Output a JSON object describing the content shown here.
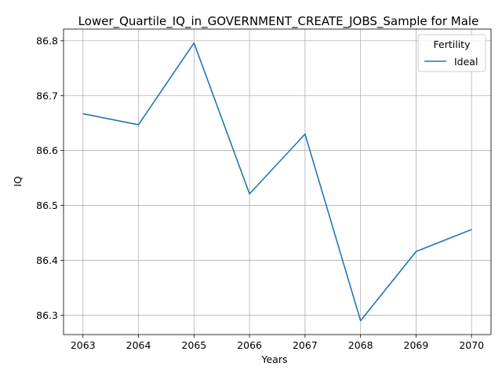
{
  "chart_data": {
    "type": "line",
    "title": "Lower_Quartile_IQ_in_GOVERNMENT_CREATE_JOBS_Sample for Male",
    "xlabel": "Years",
    "ylabel": "IQ",
    "x": [
      2063,
      2064,
      2065,
      2066,
      2067,
      2068,
      2069,
      2070
    ],
    "series": [
      {
        "name": "Ideal",
        "color": "#1f77b4",
        "values": [
          86.667,
          86.647,
          86.796,
          86.521,
          86.63,
          86.29,
          86.416,
          86.456
        ]
      }
    ],
    "xlim": [
      2062.65,
      2070.35
    ],
    "ylim": [
      86.2647,
      86.8213
    ],
    "x_ticks": [
      "2063",
      "2064",
      "2065",
      "2066",
      "2067",
      "2068",
      "2069",
      "2070"
    ],
    "y_ticks": [
      86.3,
      86.4,
      86.5,
      86.6,
      86.7,
      86.8
    ],
    "y_tick_labels": [
      "86.3",
      "86.4",
      "86.5",
      "86.6",
      "86.7",
      "86.8"
    ],
    "grid": true,
    "legend": {
      "title": "Fertility",
      "placement": "top-right"
    }
  }
}
